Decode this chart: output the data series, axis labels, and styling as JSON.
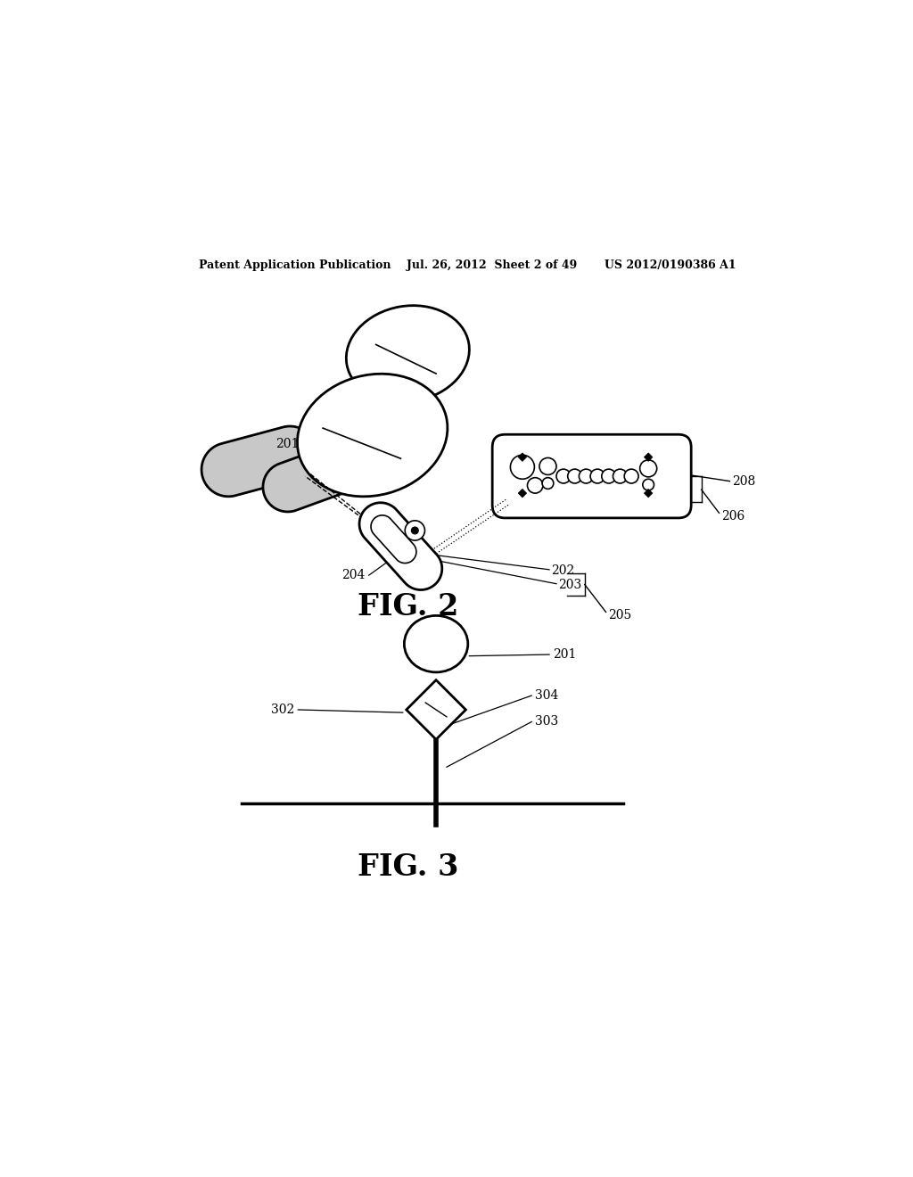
{
  "bg_color": "#ffffff",
  "line_color": "#000000",
  "gray_fill": "#c8c8c8",
  "header_text": "Patent Application Publication    Jul. 26, 2012  Sheet 2 of 49       US 2012/0190386 A1",
  "fig2_label": "FIG. 2",
  "fig3_label": "FIG. 3"
}
